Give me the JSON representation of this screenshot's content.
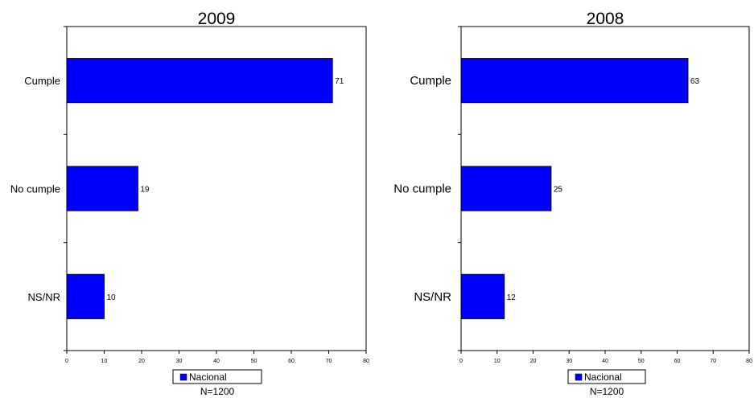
{
  "chart_data": [
    {
      "type": "bar",
      "orientation": "horizontal",
      "title": "2009",
      "categories": [
        "Cumple",
        "No cumple",
        "NS/NR"
      ],
      "series": [
        {
          "name": "Nacional",
          "values": [
            71,
            19,
            10
          ],
          "color": "#0000ff"
        }
      ],
      "data_labels": [
        "71",
        "19",
        "10"
      ],
      "xlim": [
        0,
        80
      ],
      "x_ticks": [
        "0",
        "10",
        "20",
        "30",
        "40",
        "50",
        "60",
        "70",
        "80"
      ],
      "grid": false,
      "legend_position": "bottom",
      "note": "N=1200"
    },
    {
      "type": "bar",
      "orientation": "horizontal",
      "title": "2008",
      "categories": [
        "Cumple",
        "No cumple",
        "NS/NR"
      ],
      "series": [
        {
          "name": "Nacional",
          "values": [
            63,
            25,
            12
          ],
          "color": "#0000ff"
        }
      ],
      "data_labels": [
        "63",
        "25",
        "12"
      ],
      "xlim": [
        0,
        80
      ],
      "x_ticks": [
        "0",
        "10",
        "20",
        "30",
        "40",
        "50",
        "60",
        "70",
        "80"
      ],
      "grid": false,
      "legend_position": "bottom",
      "note": "N=1200"
    }
  ]
}
